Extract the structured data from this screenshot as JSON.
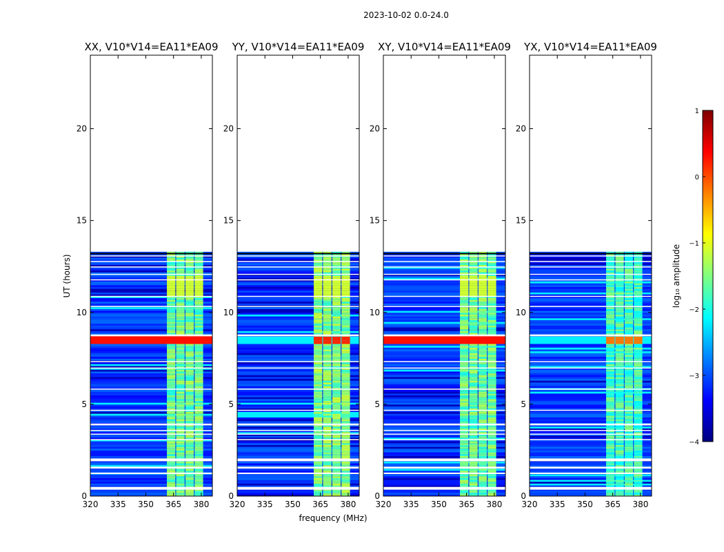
{
  "suptitle": "2023-10-02 0.0-24.0",
  "chart_data": {
    "type": "heatmap",
    "ylabel": "UT (hours)",
    "xlabel": "frequency (MHz)",
    "xlim": [
      320,
      386
    ],
    "ylim": [
      0,
      24
    ],
    "xticks": [
      "320",
      "335",
      "350",
      "365",
      "380"
    ],
    "xtick_values": [
      320,
      335,
      350,
      365,
      380
    ],
    "yticks": [
      "0",
      "5",
      "10",
      "15",
      "20"
    ],
    "ytick_values": [
      0,
      5,
      10,
      15,
      20
    ],
    "data_extent_hours": [
      0,
      13.2
    ],
    "rfi_band_mhz": [
      361,
      380
    ],
    "rfi_channel_centers_mhz": [
      365,
      370,
      375,
      380
    ],
    "panels": [
      {
        "title": "XX, V10*V14=EA11*EA09",
        "pol": "XX",
        "band_log_amp": -1.6,
        "flare_log_amp": 0.3,
        "flare_hours": [
          8.2,
          8.7
        ],
        "flare_broadband": true
      },
      {
        "title": "YY, V10*V14=EA11*EA09",
        "pol": "YY",
        "band_log_amp": -1.5,
        "flare_log_amp": 0.2,
        "flare_hours": [
          8.2,
          8.6
        ],
        "flare_broadband": false
      },
      {
        "title": "XY, V10*V14=EA11*EA09",
        "pol": "XY",
        "band_log_amp": -1.6,
        "flare_log_amp": 0.3,
        "flare_hours": [
          8.2,
          8.7
        ],
        "flare_broadband": true
      },
      {
        "title": "YX, V10*V14=EA11*EA09",
        "pol": "YX",
        "band_log_amp": -1.8,
        "flare_log_amp": -0.2,
        "flare_hours": [
          8.2,
          8.6
        ],
        "flare_broadband": false
      }
    ],
    "gap_hours": [
      [
        1.9,
        2.05
      ],
      [
        1.5,
        1.6
      ],
      [
        1.2,
        1.28
      ],
      [
        0.35,
        0.5
      ],
      [
        3.05,
        3.1
      ],
      [
        3.35,
        3.4
      ],
      [
        3.55,
        3.6
      ],
      [
        3.85,
        3.95
      ],
      [
        4.65,
        4.7
      ],
      [
        5.8,
        5.85
      ],
      [
        6.95,
        7.0
      ],
      [
        7.3,
        7.35
      ],
      [
        8.7,
        8.8
      ],
      [
        10.3,
        10.35
      ],
      [
        10.85,
        10.9
      ],
      [
        11.75,
        11.8
      ],
      [
        12.05,
        12.1
      ],
      [
        12.45,
        12.5
      ],
      [
        12.75,
        12.8
      ],
      [
        13.05,
        13.1
      ]
    ],
    "colorbar": {
      "label": "log₁₀ amplitude",
      "range": [
        -4,
        1
      ],
      "ticks": [
        "1",
        "0",
        "−1",
        "−2",
        "−3",
        "−4"
      ],
      "tick_values": [
        1,
        0,
        -1,
        -2,
        -3,
        -4
      ],
      "colormap": "jet",
      "colors": [
        "#00007f",
        "#0000ff",
        "#0080ff",
        "#00ffff",
        "#80ff80",
        "#ffff00",
        "#ff8000",
        "#ff0000",
        "#7f0000"
      ]
    }
  }
}
